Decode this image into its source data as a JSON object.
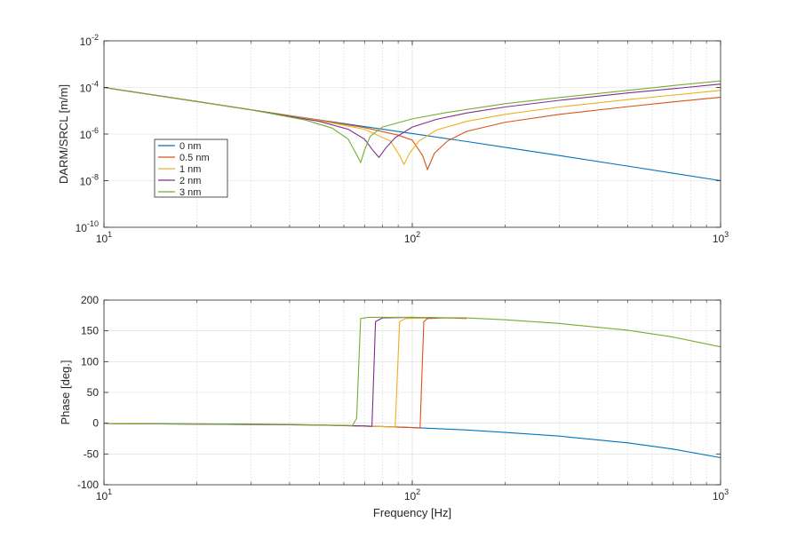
{
  "chart_data": [
    {
      "type": "line",
      "panel": "magnitude",
      "ylabel": "DARM/SRCL [m/m]",
      "xlabel": "",
      "xscale": "log",
      "yscale": "log",
      "xlim": [
        10,
        1000
      ],
      "ylim": [
        1e-10,
        0.01
      ],
      "grid": true,
      "legend_position": "left, mid-height",
      "x_ticks": [
        {
          "base": "10",
          "exp": "1"
        },
        {
          "base": "10",
          "exp": "2"
        },
        {
          "base": "10",
          "exp": "3"
        }
      ],
      "y_ticks": [
        {
          "value": 1e-10,
          "base": "10",
          "exp": "-10"
        },
        {
          "value": 1e-08,
          "base": "10",
          "exp": "-8"
        },
        {
          "value": 1e-06,
          "base": "10",
          "exp": "-6"
        },
        {
          "value": 0.0001,
          "base": "10",
          "exp": "-4"
        },
        {
          "value": 0.01,
          "base": "10",
          "exp": "-2"
        }
      ],
      "series": [
        {
          "name": "0 nm",
          "color": "#0072BD",
          "points": [
            [
              10,
              0.0001
            ],
            [
              20,
              2.5e-05
            ],
            [
              30,
              1.1e-05
            ],
            [
              50,
              4e-06
            ],
            [
              70,
              2.1e-06
            ],
            [
              100,
              1.05e-06
            ],
            [
              150,
              4.8e-07
            ],
            [
              200,
              2.7e-07
            ],
            [
              300,
              1.2e-07
            ],
            [
              500,
              4.2e-08
            ],
            [
              700,
              2.1e-08
            ],
            [
              1000,
              1e-08
            ]
          ]
        },
        {
          "name": "0.5 nm",
          "color": "#D95319",
          "points": [
            [
              10,
              0.0001
            ],
            [
              20,
              2.5e-05
            ],
            [
              30,
              1.1e-05
            ],
            [
              50,
              3.9e-06
            ],
            [
              70,
              1.9e-06
            ],
            [
              90,
              9e-07
            ],
            [
              100,
              5.5e-07
            ],
            [
              108,
              1.2e-07
            ],
            [
              112,
              3e-08
            ],
            [
              118,
              1.5e-07
            ],
            [
              130,
              5e-07
            ],
            [
              150,
              1.3e-06
            ],
            [
              200,
              3.2e-06
            ],
            [
              300,
              7e-06
            ],
            [
              500,
              1.5e-05
            ],
            [
              700,
              2.4e-05
            ],
            [
              1000,
              3.8e-05
            ]
          ]
        },
        {
          "name": "1 nm",
          "color": "#EDB120",
          "points": [
            [
              10,
              0.0001
            ],
            [
              20,
              2.5e-05
            ],
            [
              30,
              1.1e-05
            ],
            [
              50,
              3.8e-06
            ],
            [
              70,
              1.6e-06
            ],
            [
              85,
              5e-07
            ],
            [
              91,
              1.2e-07
            ],
            [
              94,
              5e-08
            ],
            [
              98,
              1.5e-07
            ],
            [
              105,
              5e-07
            ],
            [
              120,
              1.5e-06
            ],
            [
              150,
              3.5e-06
            ],
            [
              200,
              7e-06
            ],
            [
              300,
              1.45e-05
            ],
            [
              500,
              3e-05
            ],
            [
              700,
              4.7e-05
            ],
            [
              1000,
              7.5e-05
            ]
          ]
        },
        {
          "name": "2 nm",
          "color": "#7E2F8E",
          "points": [
            [
              10,
              0.0001
            ],
            [
              20,
              2.5e-05
            ],
            [
              30,
              1.1e-05
            ],
            [
              50,
              3.5e-06
            ],
            [
              62,
              1.6e-06
            ],
            [
              70,
              6e-07
            ],
            [
              75,
              1.8e-07
            ],
            [
              78,
              1e-07
            ],
            [
              82,
              2.5e-07
            ],
            [
              88,
              7e-07
            ],
            [
              100,
              2e-06
            ],
            [
              120,
              4.3e-06
            ],
            [
              150,
              8e-06
            ],
            [
              200,
              1.45e-05
            ],
            [
              300,
              2.8e-05
            ],
            [
              500,
              5.8e-05
            ],
            [
              700,
              8.8e-05
            ],
            [
              1000,
              0.00014
            ]
          ]
        },
        {
          "name": "3 nm",
          "color": "#77AC30",
          "points": [
            [
              10,
              0.0001
            ],
            [
              20,
              2.5e-05
            ],
            [
              30,
              1.1e-05
            ],
            [
              45,
              4e-06
            ],
            [
              55,
              1.8e-06
            ],
            [
              62,
              6e-07
            ],
            [
              66,
              1.3e-07
            ],
            [
              68,
              6e-08
            ],
            [
              70,
              2e-07
            ],
            [
              73,
              8e-07
            ],
            [
              80,
              2e-06
            ],
            [
              100,
              4.5e-06
            ],
            [
              130,
              8.5e-06
            ],
            [
              200,
              2e-05
            ],
            [
              300,
              3.7e-05
            ],
            [
              500,
              7.5e-05
            ],
            [
              700,
              0.00012
            ],
            [
              1000,
              0.00019
            ]
          ]
        }
      ],
      "legend": [
        "0 nm",
        "0.5 nm",
        "1 nm",
        "2 nm",
        "3 nm"
      ]
    },
    {
      "type": "line",
      "panel": "phase",
      "xlabel": "Frequency [Hz]",
      "ylabel": "Phase [deg.]",
      "xscale": "log",
      "xlim": [
        10,
        1000
      ],
      "ylim": [
        -100,
        200
      ],
      "grid": true,
      "x_ticks": [
        {
          "base": "10",
          "exp": "1"
        },
        {
          "base": "10",
          "exp": "2"
        },
        {
          "base": "10",
          "exp": "3"
        }
      ],
      "y_ticks": [
        {
          "value": -100,
          "label": "-100"
        },
        {
          "value": -50,
          "label": "-50"
        },
        {
          "value": 0,
          "label": "0"
        },
        {
          "value": 50,
          "label": "50"
        },
        {
          "value": 100,
          "label": "100"
        },
        {
          "value": 150,
          "label": "150"
        },
        {
          "value": 200,
          "label": "200"
        }
      ],
      "series": [
        {
          "name": "0 nm",
          "color": "#0072BD",
          "points": [
            [
              10,
              -0.5
            ],
            [
              30,
              -1.5
            ],
            [
              50,
              -3
            ],
            [
              70,
              -4.5
            ],
            [
              100,
              -7
            ],
            [
              150,
              -11
            ],
            [
              200,
              -15
            ],
            [
              300,
              -21
            ],
            [
              500,
              -32
            ],
            [
              700,
              -42
            ],
            [
              1000,
              -56
            ]
          ]
        },
        {
          "name": "0.5 nm",
          "color": "#D95319",
          "points": [
            [
              10,
              -0.5
            ],
            [
              50,
              -3
            ],
            [
              80,
              -5.5
            ],
            [
              100,
              -7
            ],
            [
              106,
              -8
            ],
            [
              109,
              165
            ],
            [
              112,
              170
            ],
            [
              130,
              171
            ],
            [
              150,
              170
            ]
          ]
        },
        {
          "name": "1 nm",
          "color": "#EDB120",
          "points": [
            [
              10,
              -0.5
            ],
            [
              50,
              -3
            ],
            [
              80,
              -5.5
            ],
            [
              88,
              -6.5
            ],
            [
              91,
              165
            ],
            [
              95,
              170
            ],
            [
              110,
              171
            ],
            [
              130,
              171
            ]
          ]
        },
        {
          "name": "2 nm",
          "color": "#7E2F8E",
          "points": [
            [
              10,
              -0.5
            ],
            [
              50,
              -3
            ],
            [
              70,
              -4.5
            ],
            [
              74,
              -5
            ],
            [
              76,
              165
            ],
            [
              80,
              171
            ],
            [
              100,
              172
            ],
            [
              120,
              171
            ]
          ]
        },
        {
          "name": "3 nm",
          "color": "#77AC30",
          "points": [
            [
              10,
              -0.5
            ],
            [
              40,
              -2
            ],
            [
              60,
              -3.5
            ],
            [
              64,
              -4
            ],
            [
              66,
              8
            ],
            [
              68,
              170
            ],
            [
              72,
              172
            ],
            [
              100,
              172
            ],
            [
              150,
              171
            ],
            [
              200,
              168
            ],
            [
              300,
              162
            ],
            [
              500,
              151
            ],
            [
              700,
              140
            ],
            [
              1000,
              124
            ]
          ]
        }
      ]
    }
  ]
}
